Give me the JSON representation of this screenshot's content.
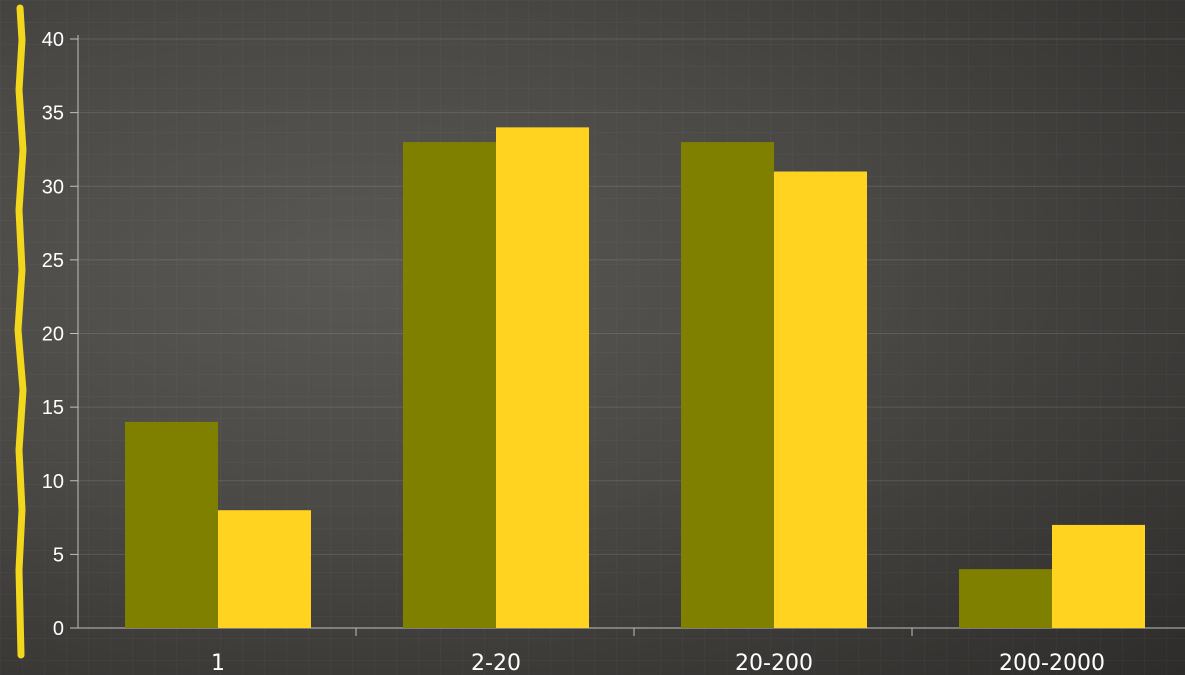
{
  "chart_data": {
    "type": "bar",
    "categories": [
      "1",
      "2-20",
      "20-200",
      "200-2000"
    ],
    "series": [
      {
        "color": "#808000",
        "values": [
          14,
          33,
          33,
          4
        ]
      },
      {
        "color": "#ffd320",
        "values": [
          8,
          34,
          31,
          7
        ]
      }
    ],
    "yticks": [
      "0",
      "5",
      "10",
      "15",
      "20",
      "25",
      "30",
      "35",
      "40"
    ],
    "ylim": [
      0,
      40
    ],
    "grid": true,
    "legend": "none"
  }
}
